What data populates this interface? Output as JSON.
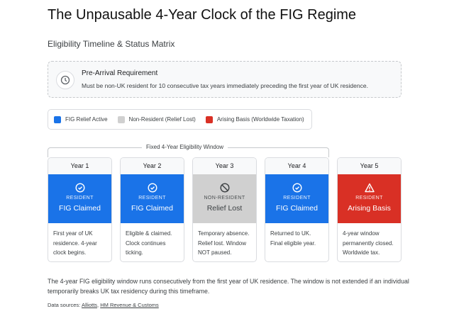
{
  "title": "The Unpausable 4-Year Clock of the FIG Regime",
  "subtitle": "Eligibility Timeline & Status Matrix",
  "requirement": {
    "icon": "clock-icon",
    "heading": "Pre-Arrival Requirement",
    "text": "Must be non-UK resident for 10 consecutive tax years immediately preceding the first year of UK residence."
  },
  "legend": [
    {
      "label": "FIG Relief Active",
      "color": "#1a73e8"
    },
    {
      "label": "Non-Resident (Relief Lost)",
      "color": "#d0d0d0"
    },
    {
      "label": "Arising Basis (Worldwide Taxation)",
      "color": "#d93025"
    }
  ],
  "window_label": "Fixed 4-Year Eligibility Window",
  "years": [
    {
      "year": "Year 1",
      "status": "RESIDENT",
      "value": "FIG Claimed",
      "icon": "check-circle-icon",
      "color": "#1a73e8",
      "desc": "First year of UK residence. 4-year clock begins."
    },
    {
      "year": "Year 2",
      "status": "RESIDENT",
      "value": "FIG Claimed",
      "icon": "check-circle-icon",
      "color": "#1a73e8",
      "desc": "Eligible & claimed. Clock continues ticking."
    },
    {
      "year": "Year 3",
      "status": "NON-RESIDENT",
      "value": "Relief Lost",
      "icon": "block-icon",
      "color": "#d0d0d0",
      "desc": "Temporary absence. Relief lost. Window NOT paused."
    },
    {
      "year": "Year 4",
      "status": "RESIDENT",
      "value": "FIG Claimed",
      "icon": "check-circle-icon",
      "color": "#1a73e8",
      "desc": "Returned to UK. Final eligible year."
    },
    {
      "year": "Year 5",
      "status": "RESIDENT",
      "value": "Arising Basis",
      "icon": "warning-icon",
      "color": "#d93025",
      "desc": "4-year window permanently closed. Worldwide tax."
    }
  ],
  "note": "The 4-year FIG eligibility window runs consecutively from the first year of UK residence. The window is not extended if an individual temporarily breaks UK tax residency during this timeframe.",
  "sources": {
    "label": "Data sources:",
    "links": [
      "Alliotts",
      "HM Revenue & Customs"
    ]
  }
}
